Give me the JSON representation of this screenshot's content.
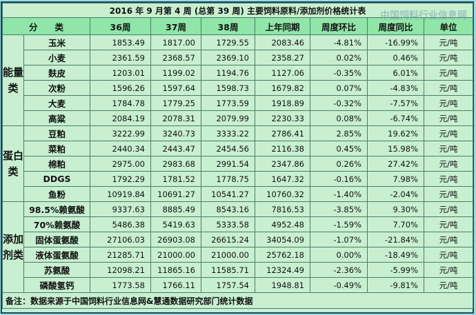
{
  "title": "2016 年 9 月第 4 周 (总第 39 周) 主要饲料原料/添加剂价格统计表",
  "watermark": "中国饲料行业信息网",
  "headers": [
    "分　　类",
    "36周",
    "37周",
    "38周",
    "上年同期",
    "周度环比",
    "周度同比",
    "单位"
  ],
  "categories": {
    "energy": "能量类",
    "protein": "蛋白类",
    "additive": "添加剂类"
  },
  "rows": [
    [
      "玉米",
      "1853.49",
      "1817.00",
      "1729.55",
      "2083.46",
      "-4.81%",
      "-16.99%",
      "元/吨"
    ],
    [
      "小麦",
      "2361.59",
      "2368.57",
      "2369.10",
      "2358.27",
      "0.02%",
      "0.46%",
      "元/吨"
    ],
    [
      "麸皮",
      "1203.01",
      "1199.02",
      "1194.76",
      "1127.06",
      "-0.35%",
      "6.01%",
      "元/吨"
    ],
    [
      "次粉",
      "1596.26",
      "1597.64",
      "1598.73",
      "1679.82",
      "0.07%",
      "-4.83%",
      "元/吨"
    ],
    [
      "大麦",
      "1784.78",
      "1779.25",
      "1773.59",
      "1918.89",
      "-0.32%",
      "-7.57%",
      "元/吨"
    ],
    [
      "高粱",
      "2084.19",
      "2078.31",
      "2079.99",
      "2230.33",
      "0.08%",
      "-6.74%",
      "元/吨"
    ],
    [
      "豆粕",
      "3222.99",
      "3240.73",
      "3333.22",
      "2786.41",
      "2.85%",
      "19.62%",
      "元/吨"
    ],
    [
      "菜粕",
      "2440.34",
      "2443.47",
      "2454.56",
      "2116.38",
      "0.45%",
      "15.98%",
      "元/吨"
    ],
    [
      "棉粕",
      "2975.00",
      "2983.68",
      "2991.54",
      "2347.86",
      "0.26%",
      "27.42%",
      "元/吨"
    ],
    [
      "DDGS",
      "1792.29",
      "1781.52",
      "1778.75",
      "1647.32",
      "-0.16%",
      "7.98%",
      "元/吨"
    ],
    [
      "鱼粉",
      "10919.84",
      "10691.27",
      "10541.27",
      "10760.32",
      "-1.40%",
      "-2.04%",
      "元/吨"
    ],
    [
      "98.5%赖氨酸",
      "9337.63",
      "8885.49",
      "8543.16",
      "7816.53",
      "-3.85%",
      "9.30%",
      "元/吨"
    ],
    [
      "70%赖氨酸",
      "5486.38",
      "5419.63",
      "5333.58",
      "4952.48",
      "-1.59%",
      "7.70%",
      "元/吨"
    ],
    [
      "固体蛋氨酸",
      "27106.03",
      "26903.08",
      "26615.24",
      "34054.09",
      "-1.07%",
      "-21.84%",
      "元/吨"
    ],
    [
      "液体蛋氨酸",
      "21285.71",
      "21000.00",
      "21000.00",
      "25762.18",
      "0.00%",
      "-18.49%",
      "元/吨"
    ],
    [
      "苏氨酸",
      "12098.21",
      "11865.16",
      "11585.71",
      "12324.49",
      "-2.36%",
      "-5.99%",
      "元/吨"
    ],
    [
      "磷酸氢钙",
      "1773.58",
      "1766.11",
      "1757.54",
      "1948.81",
      "-0.49%",
      "-9.81%",
      "元/吨"
    ]
  ],
  "note": "备注：数据来源于中国饲料行业信息网&慧通数据研究部门统计数据"
}
